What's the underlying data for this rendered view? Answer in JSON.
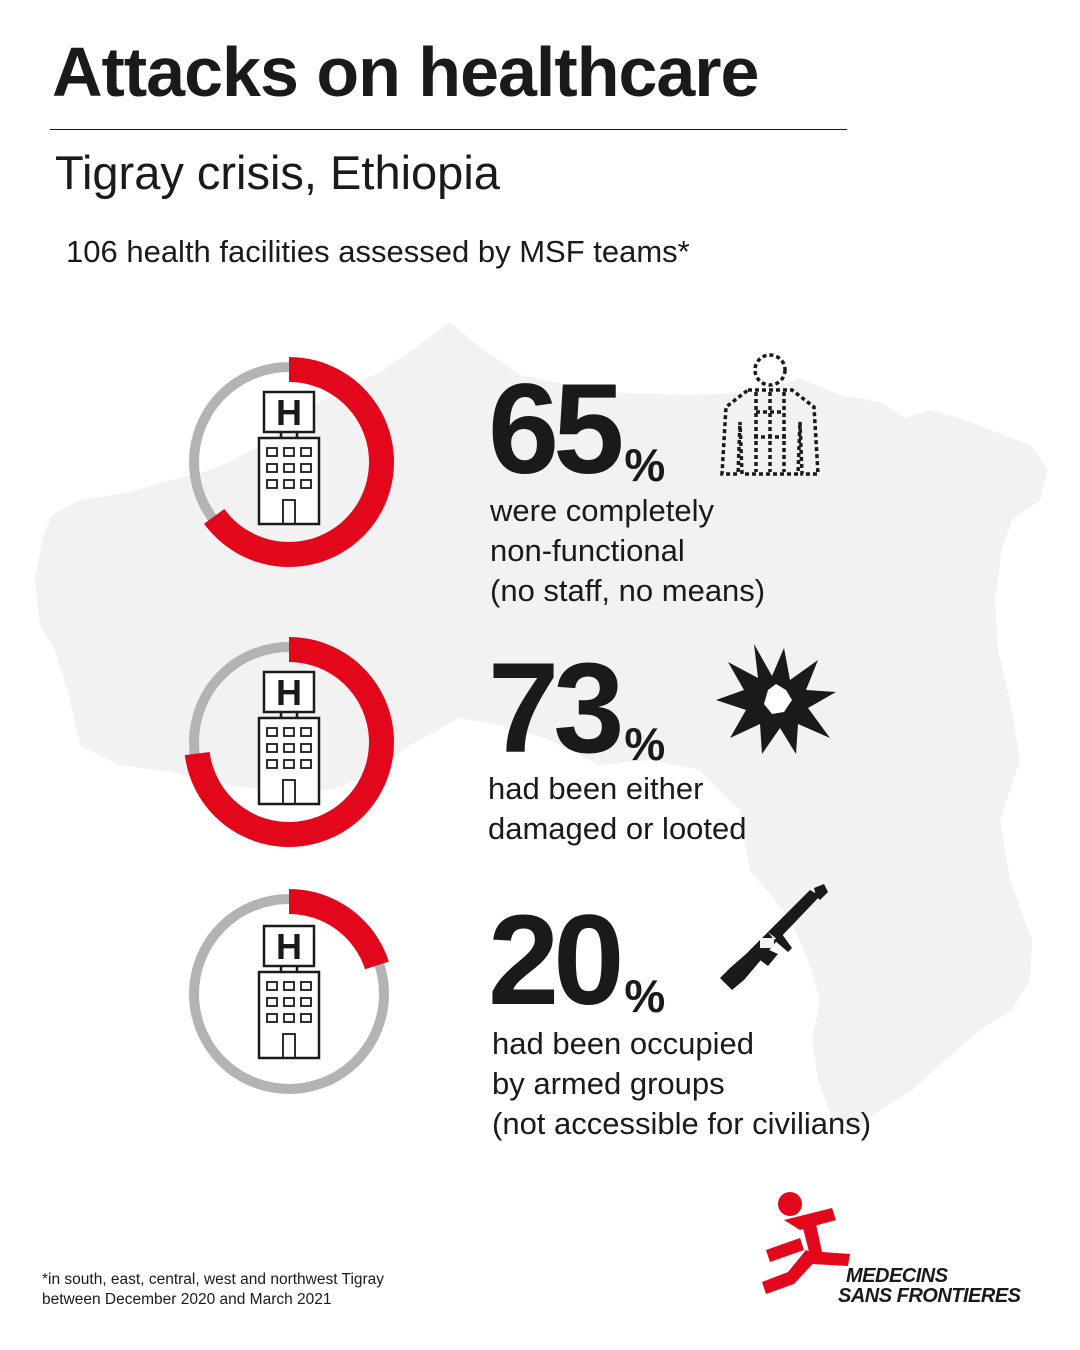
{
  "header": {
    "title": "Attacks on healthcare",
    "subtitle": "Tigray crisis, Ethiopia",
    "intro": "106 health facilities assessed by MSF teams*"
  },
  "colors": {
    "accent_red": "#e2071b",
    "ring_grey": "#b3b3b3",
    "map_fill": "#f2f2f2",
    "text": "#1a1a1a"
  },
  "chart_data": [
    {
      "type": "pie",
      "icon": "hospital-building-icon",
      "side_icon": "injured-person-outline-icon",
      "value": 65,
      "unit": "%",
      "description": [
        "were completely",
        "non-functional",
        "(no staff, no means)"
      ]
    },
    {
      "type": "pie",
      "icon": "hospital-building-icon",
      "side_icon": "explosion-icon",
      "value": 73,
      "unit": "%",
      "description": [
        "had been either",
        "damaged or looted"
      ]
    },
    {
      "type": "pie",
      "icon": "hospital-building-icon",
      "side_icon": "rifle-icon",
      "value": 20,
      "unit": "%",
      "description": [
        "had been occupied",
        "by armed groups",
        "(not accessible for civilians)"
      ]
    }
  ],
  "footnote": [
    "*in south, east, central, west and northwest Tigray",
    "between December 2020 and March 2021"
  ],
  "logo": {
    "line1": "MEDECINS",
    "line2": "SANS FRONTIERES"
  }
}
